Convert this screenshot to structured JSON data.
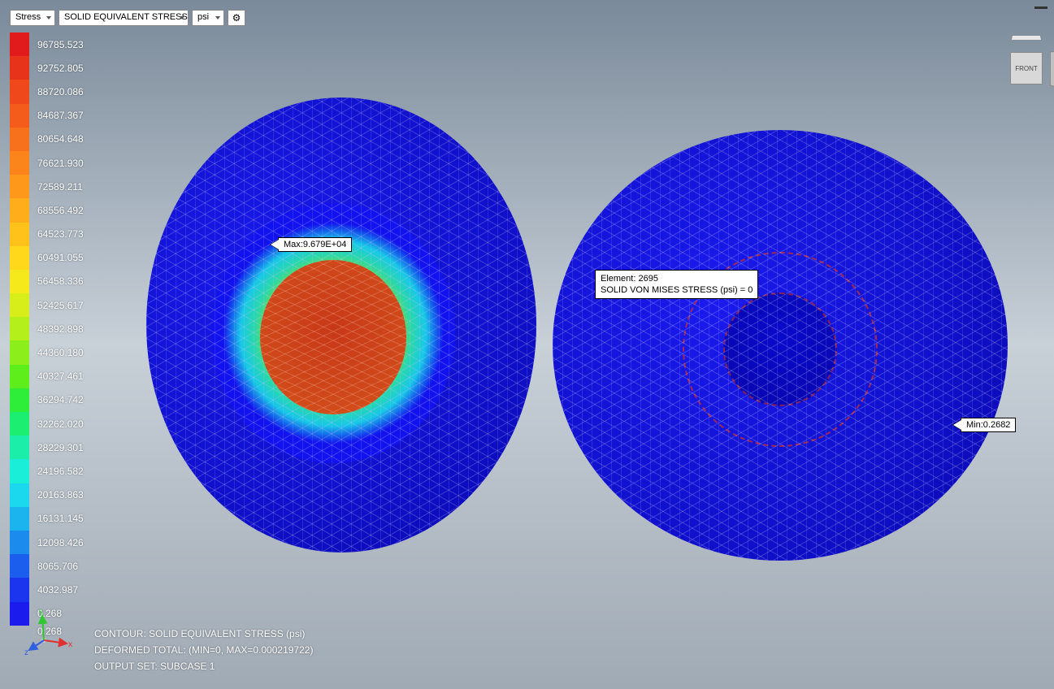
{
  "toolbar": {
    "result_type": "Stress",
    "result_component": "SOLID EQUIVALENT STRESS",
    "unit": "psi",
    "settings_icon": "⚙"
  },
  "legend": {
    "labels": [
      "96785.523",
      "92752.805",
      "88720.086",
      "84687.367",
      "80654.648",
      "76621.930",
      "72589.211",
      "68556.492",
      "64523.773",
      "60491.055",
      "56458.336",
      "52425.617",
      "48392.898",
      "44360.180",
      "40327.461",
      "36294.742",
      "32262.020",
      "28229.301",
      "24196.582",
      "20163.863",
      "16131.145",
      "12098.426",
      "8065.706",
      "4032.987",
      "0.268"
    ],
    "colors": [
      "#e11b1b",
      "#e8331b",
      "#ee481b",
      "#f35c1b",
      "#f7701b",
      "#fb841b",
      "#fe981b",
      "#ffad1b",
      "#ffc21b",
      "#ffd81b",
      "#f5e81b",
      "#d8ee1b",
      "#b4ee1b",
      "#8cee1b",
      "#5eee1b",
      "#2eee3a",
      "#1bee70",
      "#1beea8",
      "#1beed8",
      "#1bd8ee",
      "#1bb4ee",
      "#1b8cee",
      "#1b5eee",
      "#1b34ee",
      "#1b1bee"
    ]
  },
  "callouts": {
    "max_label": "Max:9.679E+04",
    "min_label": "Min:0.2682",
    "tooltip_line1": "Element: 2695",
    "tooltip_line2": "SOLID VON MISES STRESS (psi)  = 0"
  },
  "footer": {
    "line1": "CONTOUR: SOLID EQUIVALENT STRESS (psi)",
    "line2": "DEFORMED TOTAL: (MIN=0, MAX=0.000219722)",
    "line3": "OUTPUT SET: SUBCASE 1"
  },
  "viewcube": {
    "face": "FRONT"
  },
  "axes": {
    "x": "x",
    "y": "y",
    "z": "z"
  },
  "fea_model": {
    "type": "fea_contour",
    "bodies": 2,
    "left_body": {
      "geometry": "hollow_cylinder_bushing",
      "outer_stress_color": "#1b1bee",
      "ring_gradient": [
        "#1beed8",
        "#2eee3a",
        "#b4ee1b",
        "#ffd81b",
        "#f35c1b",
        "#e11b1b"
      ],
      "core_color": "#d04018",
      "max_stress": 96785.523
    },
    "right_body": {
      "geometry": "hollow_cylinder_bushing",
      "stress_color": "#1b1bee",
      "min_stress": 0.268
    },
    "mesh_wire_color": "#aeb8ff",
    "edge_highlight_color": "#dd3a20",
    "background_gradient": [
      "#7a8a9a",
      "#c8d0d8",
      "#a0aab4"
    ]
  }
}
